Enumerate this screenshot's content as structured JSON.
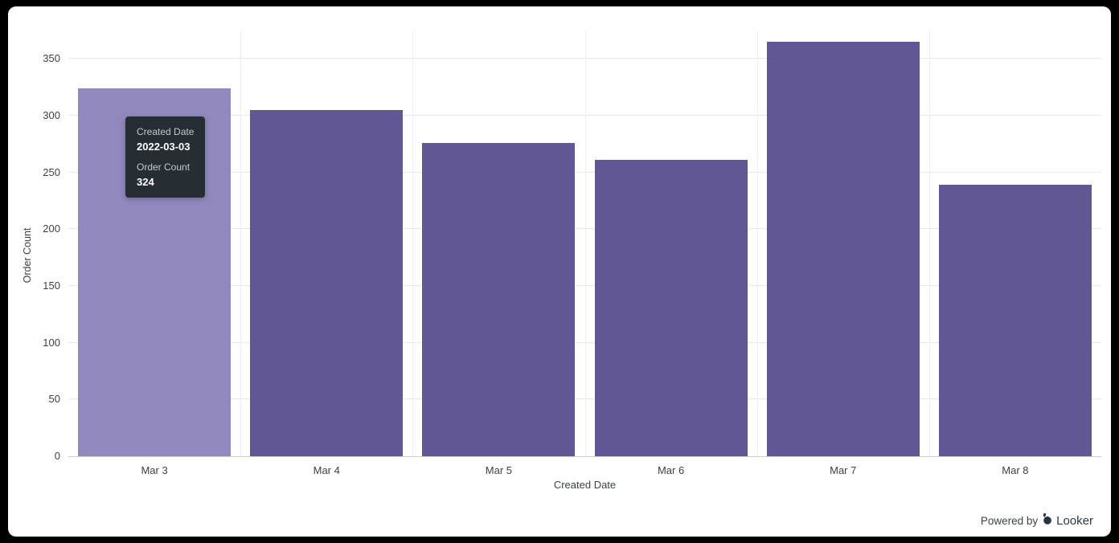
{
  "chart_data": {
    "type": "bar",
    "title": "",
    "categories": [
      "Mar 3",
      "Mar 4",
      "Mar 5",
      "Mar 6",
      "Mar 7",
      "Mar 8"
    ],
    "values": [
      324,
      305,
      276,
      261,
      365,
      239
    ],
    "xlabel": "Created Date",
    "ylabel": "Order Count",
    "ylim": [
      0,
      375
    ],
    "yticks": [
      0,
      50,
      100,
      150,
      200,
      250,
      300,
      350
    ],
    "grid": true,
    "legend": "none",
    "bar_color": "#615794",
    "bar_color_hover": "#9188BD",
    "hovered_index": 0
  },
  "tooltip": {
    "dimension_label": "Created Date",
    "dimension_value": "2022-03-03",
    "measure_label": "Order Count",
    "measure_value": "324",
    "bg_color": "#262d33"
  },
  "footer": {
    "powered_by": "Powered by",
    "brand": "Looker"
  }
}
